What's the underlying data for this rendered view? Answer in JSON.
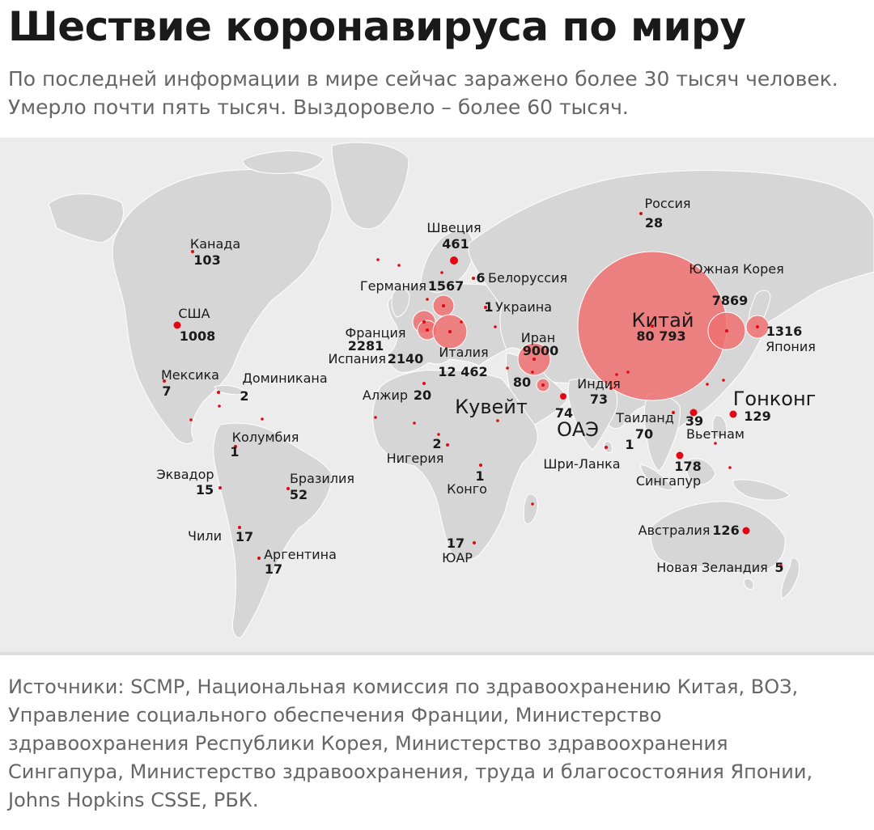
{
  "header": {
    "title": "Шествие коронавируса по миру",
    "subtitle_lines": [
      "По последней информации в мире сейчас заражено более 30 тысяч человек.",
      "Умерло почти пять тысяч. Выздоровело – более 60 тысяч."
    ]
  },
  "colors": {
    "land": "#d6d6d6",
    "map_background": "#ececec",
    "marker": "#e30613",
    "bubble": "#f07070",
    "text": "#1a1a1a",
    "muted_text": "#666666"
  },
  "locations": [
    {
      "name": "Канада",
      "value": "103"
    },
    {
      "name": "США",
      "value": "1008"
    },
    {
      "name": "Мексика",
      "value": "7"
    },
    {
      "name": "Доминикана",
      "value": "2"
    },
    {
      "name": "Колумбия",
      "value": "1"
    },
    {
      "name": "Эквадор",
      "value": "15"
    },
    {
      "name": "Бразилия",
      "value": "52"
    },
    {
      "name": "Чили",
      "value": "17"
    },
    {
      "name": "Аргентина",
      "value": "17"
    },
    {
      "name": "Швеция",
      "value": "461"
    },
    {
      "name": "Германия",
      "value": "1567"
    },
    {
      "name": "Белоруссия",
      "value": "6"
    },
    {
      "name": "Украина",
      "value": "1"
    },
    {
      "name": "Франция",
      "value": "2281"
    },
    {
      "name": "Испания",
      "value": "2140"
    },
    {
      "name": "Италия",
      "value": "12 462"
    },
    {
      "name": "Иран",
      "value": "9000"
    },
    {
      "name": "Алжир",
      "value": "20"
    },
    {
      "name": "Кувейт",
      "value": "80"
    },
    {
      "name": "ОАЭ",
      "value": "74"
    },
    {
      "name": "Нигерия",
      "value": "2"
    },
    {
      "name": "Конго",
      "value": "1"
    },
    {
      "name": "ЮАР",
      "value": "17"
    },
    {
      "name": "Индия",
      "value": "73"
    },
    {
      "name": "Шри-Ланка",
      "value": "1"
    },
    {
      "name": "Россия",
      "value": "28"
    },
    {
      "name": "Китай",
      "value": "80 793"
    },
    {
      "name": "Южная Корея",
      "value": "7869"
    },
    {
      "name": "Япония",
      "value": "1316"
    },
    {
      "name": "Гонконг",
      "value": "129"
    },
    {
      "name": "Таиланд",
      "value": "70"
    },
    {
      "name": "Вьетнам",
      "value": "39"
    },
    {
      "name": "Сингапур",
      "value": "178"
    },
    {
      "name": "Австралия",
      "value": "126"
    },
    {
      "name": "Новая Зеландия",
      "value": "5"
    }
  ],
  "footer": {
    "source_lines": [
      "Источники: SCMP, Национальная комиссия по здравоохранению Китая, ВОЗ,",
      "Управление социального обеспечения Франции, Министерство",
      "здравоохранения Республики Корея, Министерство здравоохранения",
      "Сингапура, Министерство здравоохранения, труда и благосостояния Японии,",
      "Johns Hopkins CSSE, РБК."
    ]
  }
}
